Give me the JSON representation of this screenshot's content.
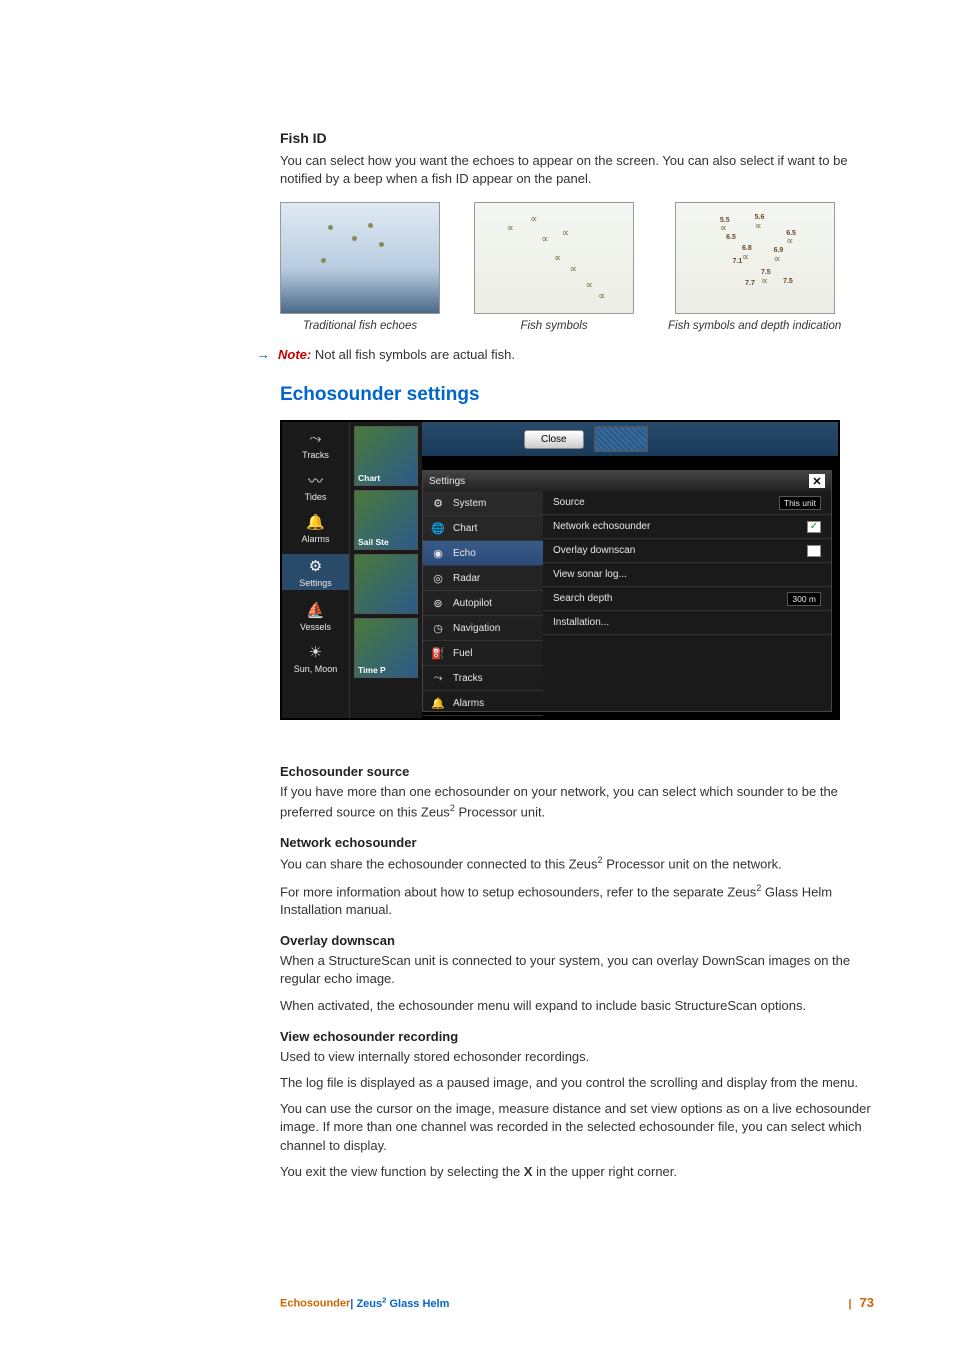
{
  "fish_id": {
    "heading": "Fish ID",
    "body": "You can select how you want the echoes to appear on the screen. You can also select if want to be notified by a beep when a fish ID appear on the panel.",
    "figs": [
      {
        "caption": "Traditional fish echoes"
      },
      {
        "caption": "Fish symbols"
      },
      {
        "caption": "Fish symbols and depth indication"
      }
    ],
    "depth_labels": [
      "5.5",
      "5.6",
      "6.5",
      "6.5",
      "6.8",
      "6.9",
      "7.1",
      "7.5",
      "7.7",
      "7.5"
    ]
  },
  "note": {
    "arrow": "→",
    "label": "Note:",
    "text": " Not all fish symbols are actual fish."
  },
  "settings_section": {
    "title": "Echosounder settings"
  },
  "screenshot": {
    "left_menu": [
      {
        "icon": "⤳",
        "label": "Tracks"
      },
      {
        "icon": "〰",
        "label": "Tides"
      },
      {
        "icon": "🔔",
        "label": "Alarms"
      },
      {
        "icon": "⚙",
        "label": "Settings",
        "selected": true
      },
      {
        "icon": "⛵",
        "label": "Vessels"
      },
      {
        "icon": "☀",
        "label": "Sun, Moon"
      }
    ],
    "thumbs": [
      {
        "label": "Chart"
      },
      {
        "label": "Sail Ste"
      },
      {
        "label": ""
      },
      {
        "label": "Time P"
      }
    ],
    "top": {
      "close": "Close"
    },
    "settings_header": "Settings",
    "settings_menu": [
      {
        "icon": "⚙",
        "label": "System"
      },
      {
        "icon": "🌐",
        "label": "Chart"
      },
      {
        "icon": "◉",
        "label": "Echo",
        "selected": true
      },
      {
        "icon": "◎",
        "label": "Radar"
      },
      {
        "icon": "⊚",
        "label": "Autopilot"
      },
      {
        "icon": "◷",
        "label": "Navigation"
      },
      {
        "icon": "⛽",
        "label": "Fuel"
      },
      {
        "icon": "⤳",
        "label": "Tracks"
      },
      {
        "icon": "🔔",
        "label": "Alarms"
      }
    ],
    "settings_panel": [
      {
        "label": "Source",
        "value": "This unit",
        "type": "dropdown"
      },
      {
        "label": "Network echosounder",
        "type": "check",
        "checked": true
      },
      {
        "label": "Overlay downscan",
        "type": "check",
        "checked": false
      },
      {
        "label": "View sonar log...",
        "type": "link"
      },
      {
        "label": "Search depth",
        "value": "300 m",
        "type": "dropdown"
      },
      {
        "label": "Installation...",
        "type": "link"
      }
    ]
  },
  "subsections": [
    {
      "h": "Echosounder source",
      "p": [
        "If you have more than one echosounder on your network, you can select which sounder to be the preferred source on this Zeus² Processor unit."
      ]
    },
    {
      "h": "Network echosounder",
      "p": [
        "You can share the echosounder connected to this Zeus² Processor unit on the network.",
        "For more information about how to setup echosounders, refer to the separate Zeus² Glass Helm Installation manual."
      ]
    },
    {
      "h": "Overlay downscan",
      "p": [
        "When a StructureScan unit is connected to your system, you can overlay DownScan images on the regular echo image.",
        "When activated, the echosounder menu will expand to include basic StructureScan options."
      ]
    },
    {
      "h": "View echosounder recording",
      "p": [
        "Used to view internally stored echosonder recordings.",
        "The log file is displayed as a paused image, and you control the scrolling and display from the menu.",
        "You can use the cursor on the image, measure distance and set view options as on a live echosounder image. If more than one channel was recorded in the selected echosounder file, you can select which channel to display.",
        "You exit the view function by selecting the X in the upper right corner."
      ]
    }
  ],
  "footer": {
    "section": "Echosounder",
    "sep": "| ",
    "product_pre": "Zeus",
    "product_sup": "2",
    "product_post": " Glass Helm",
    "page": "73"
  },
  "colors": {
    "link_blue": "#0066cc",
    "note_red": "#cc0000",
    "accent_orange": "#cc6600",
    "body_text": "#333333"
  }
}
